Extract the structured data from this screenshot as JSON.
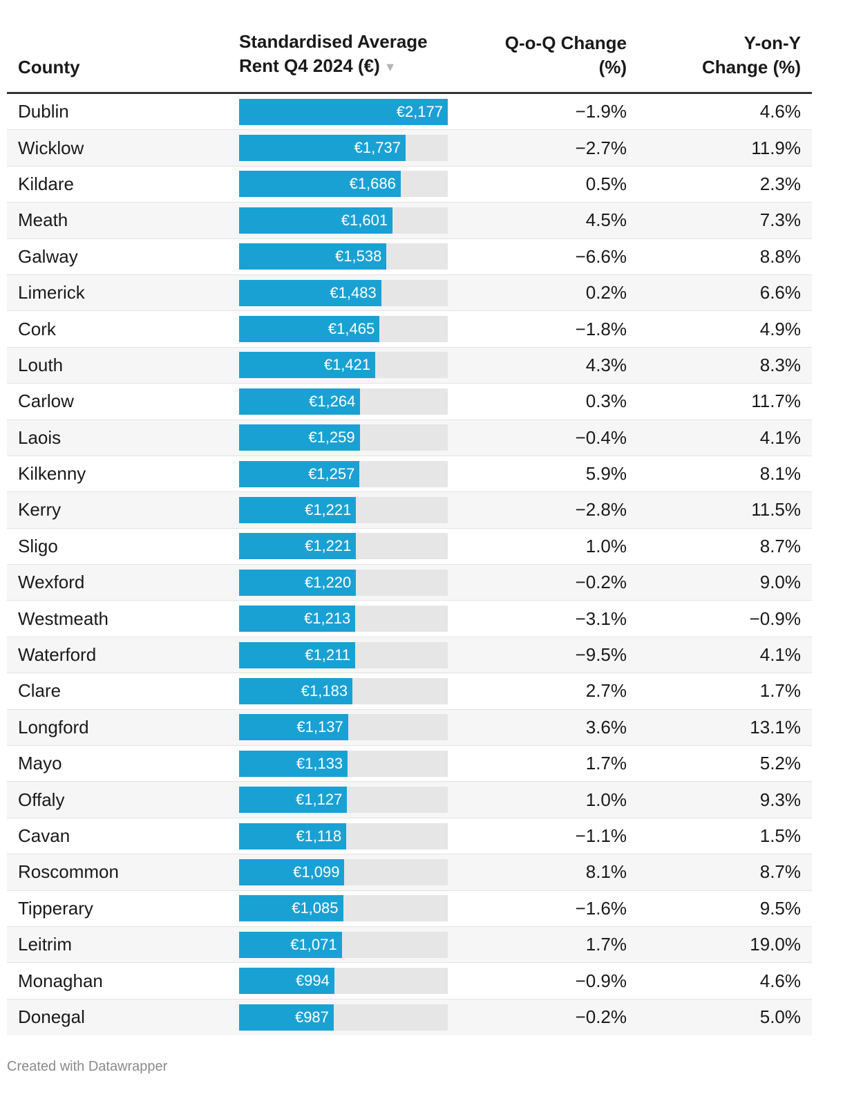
{
  "header": {
    "county": "County",
    "rent_line1": "Standardised Average",
    "rent_line2": "Rent Q4 2024 (€)",
    "sort_indicator": "▼",
    "qoq_line1": "Q-o-Q Change",
    "qoq_line2": "(%)",
    "yoy_line1": "Y-on-Y",
    "yoy_line2": "Change (%)"
  },
  "footer": "Created with Datawrapper",
  "colors": {
    "bar": "#1aa1d3",
    "track": "#e6e6e6"
  },
  "chart_data": {
    "type": "table",
    "title": "",
    "columns": [
      "County",
      "Standardised Average Rent Q4 2024 (€)",
      "Q-o-Q Change (%)",
      "Y-on-Y Change (%)"
    ],
    "bar_max": 2177,
    "rows": [
      {
        "county": "Dublin",
        "rent": 2177,
        "rent_label": "€2,177",
        "qoq": "−1.9%",
        "yoy": "4.6%"
      },
      {
        "county": "Wicklow",
        "rent": 1737,
        "rent_label": "€1,737",
        "qoq": "−2.7%",
        "yoy": "11.9%"
      },
      {
        "county": "Kildare",
        "rent": 1686,
        "rent_label": "€1,686",
        "qoq": "0.5%",
        "yoy": "2.3%"
      },
      {
        "county": "Meath",
        "rent": 1601,
        "rent_label": "€1,601",
        "qoq": "4.5%",
        "yoy": "7.3%"
      },
      {
        "county": "Galway",
        "rent": 1538,
        "rent_label": "€1,538",
        "qoq": "−6.6%",
        "yoy": "8.8%"
      },
      {
        "county": "Limerick",
        "rent": 1483,
        "rent_label": "€1,483",
        "qoq": "0.2%",
        "yoy": "6.6%"
      },
      {
        "county": "Cork",
        "rent": 1465,
        "rent_label": "€1,465",
        "qoq": "−1.8%",
        "yoy": "4.9%"
      },
      {
        "county": "Louth",
        "rent": 1421,
        "rent_label": "€1,421",
        "qoq": "4.3%",
        "yoy": "8.3%"
      },
      {
        "county": "Carlow",
        "rent": 1264,
        "rent_label": "€1,264",
        "qoq": "0.3%",
        "yoy": "11.7%"
      },
      {
        "county": "Laois",
        "rent": 1259,
        "rent_label": "€1,259",
        "qoq": "−0.4%",
        "yoy": "4.1%"
      },
      {
        "county": "Kilkenny",
        "rent": 1257,
        "rent_label": "€1,257",
        "qoq": "5.9%",
        "yoy": "8.1%"
      },
      {
        "county": "Kerry",
        "rent": 1221,
        "rent_label": "€1,221",
        "qoq": "−2.8%",
        "yoy": "11.5%"
      },
      {
        "county": "Sligo",
        "rent": 1221,
        "rent_label": "€1,221",
        "qoq": "1.0%",
        "yoy": "8.7%"
      },
      {
        "county": "Wexford",
        "rent": 1220,
        "rent_label": "€1,220",
        "qoq": "−0.2%",
        "yoy": "9.0%"
      },
      {
        "county": "Westmeath",
        "rent": 1213,
        "rent_label": "€1,213",
        "qoq": "−3.1%",
        "yoy": "−0.9%"
      },
      {
        "county": "Waterford",
        "rent": 1211,
        "rent_label": "€1,211",
        "qoq": "−9.5%",
        "yoy": "4.1%"
      },
      {
        "county": "Clare",
        "rent": 1183,
        "rent_label": "€1,183",
        "qoq": "2.7%",
        "yoy": "1.7%"
      },
      {
        "county": "Longford",
        "rent": 1137,
        "rent_label": "€1,137",
        "qoq": "3.6%",
        "yoy": "13.1%"
      },
      {
        "county": "Mayo",
        "rent": 1133,
        "rent_label": "€1,133",
        "qoq": "1.7%",
        "yoy": "5.2%"
      },
      {
        "county": "Offaly",
        "rent": 1127,
        "rent_label": "€1,127",
        "qoq": "1.0%",
        "yoy": "9.3%"
      },
      {
        "county": "Cavan",
        "rent": 1118,
        "rent_label": "€1,118",
        "qoq": "−1.1%",
        "yoy": "1.5%"
      },
      {
        "county": "Roscommon",
        "rent": 1099,
        "rent_label": "€1,099",
        "qoq": "8.1%",
        "yoy": "8.7%"
      },
      {
        "county": "Tipperary",
        "rent": 1085,
        "rent_label": "€1,085",
        "qoq": "−1.6%",
        "yoy": "9.5%"
      },
      {
        "county": "Leitrim",
        "rent": 1071,
        "rent_label": "€1,071",
        "qoq": "1.7%",
        "yoy": "19.0%"
      },
      {
        "county": "Monaghan",
        "rent": 994,
        "rent_label": "€994",
        "qoq": "−0.9%",
        "yoy": "4.6%"
      },
      {
        "county": "Donegal",
        "rent": 987,
        "rent_label": "€987",
        "qoq": "−0.2%",
        "yoy": "5.0%"
      }
    ]
  }
}
